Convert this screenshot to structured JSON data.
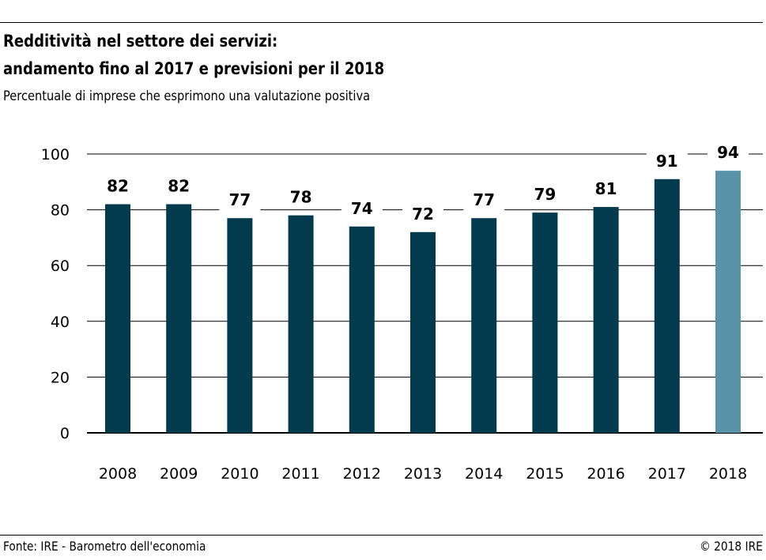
{
  "header": {
    "title_line1": "Redditività nel settore dei servizi:",
    "title_line2": "andamento fino al 2017 e previsioni per il 2018",
    "subtitle": "Percentuale di imprese che esprimono una valutazione positiva"
  },
  "footer": {
    "source": "Fonte: IRE - Barometro dell'economia",
    "copyright": "© 2018 IRE"
  },
  "chart_data": {
    "type": "bar",
    "title": "Redditività nel settore dei servizi: andamento fino al 2017 e previsioni per il 2018",
    "subtitle": "Percentuale di imprese che esprimono una valutazione positiva",
    "categories": [
      "2008",
      "2009",
      "2010",
      "2011",
      "2012",
      "2013",
      "2014",
      "2015",
      "2016",
      "2017",
      "2018"
    ],
    "values": [
      82,
      82,
      77,
      78,
      74,
      72,
      77,
      79,
      81,
      91,
      94
    ],
    "ylim": [
      0,
      100
    ],
    "yticks": [
      0,
      20,
      40,
      60,
      80,
      100
    ],
    "grid": true,
    "colors": {
      "actual": "#023a4e",
      "forecast": "#5893aa"
    },
    "forecast_categories": [
      "2018"
    ]
  }
}
